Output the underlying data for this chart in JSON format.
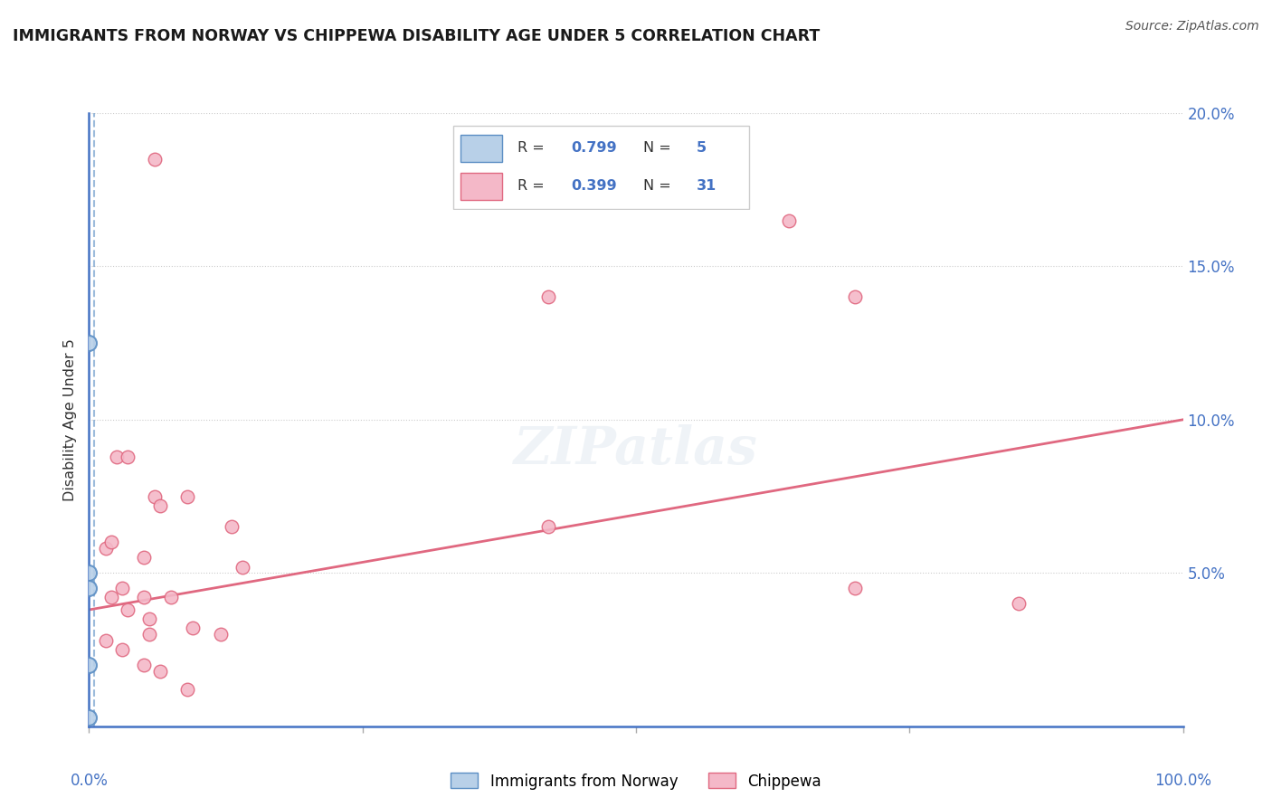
{
  "title": "IMMIGRANTS FROM NORWAY VS CHIPPEWA DISABILITY AGE UNDER 5 CORRELATION CHART",
  "source": "Source: ZipAtlas.com",
  "ylabel": "Disability Age Under 5",
  "legend_r1": "R = 0.799",
  "legend_n1": "5",
  "legend_r2": "R = 0.399",
  "legend_n2": "31",
  "legend_label1": "Immigrants from Norway",
  "legend_label2": "Chippewa",
  "blue_fill": "#b8d0e8",
  "blue_edge": "#5b8ec4",
  "pink_fill": "#f4b8c8",
  "pink_edge": "#e06880",
  "pink_line_color": "#e06880",
  "blue_dash_color": "#5b8ec4",
  "axis_color": "#4472c4",
  "title_color": "#1a1a1a",
  "source_color": "#555555",
  "grid_color": "#cccccc",
  "norway_points": [
    [
      0.0,
      12.5
    ],
    [
      0.0,
      5.0
    ],
    [
      0.0,
      4.5
    ],
    [
      0.0,
      2.0
    ],
    [
      0.0,
      0.3
    ]
  ],
  "chippewa_points": [
    [
      6.0,
      18.5
    ],
    [
      64.0,
      16.5
    ],
    [
      42.0,
      14.0
    ],
    [
      70.0,
      14.0
    ],
    [
      42.0,
      6.5
    ],
    [
      1.5,
      5.8
    ],
    [
      2.5,
      8.8
    ],
    [
      3.5,
      8.8
    ],
    [
      6.0,
      7.5
    ],
    [
      6.5,
      7.2
    ],
    [
      9.0,
      7.5
    ],
    [
      13.0,
      6.5
    ],
    [
      2.0,
      6.0
    ],
    [
      5.0,
      5.5
    ],
    [
      14.0,
      5.2
    ],
    [
      70.0,
      4.5
    ],
    [
      85.0,
      4.0
    ],
    [
      3.0,
      4.5
    ],
    [
      5.0,
      4.2
    ],
    [
      7.5,
      4.2
    ],
    [
      5.5,
      3.5
    ],
    [
      9.5,
      3.2
    ],
    [
      12.0,
      3.0
    ],
    [
      2.0,
      4.2
    ],
    [
      3.5,
      3.8
    ],
    [
      5.5,
      3.0
    ],
    [
      1.5,
      2.8
    ],
    [
      3.0,
      2.5
    ],
    [
      5.0,
      2.0
    ],
    [
      6.5,
      1.8
    ],
    [
      9.0,
      1.2
    ]
  ],
  "pink_trend_x0": 0.0,
  "pink_trend_y0": 3.8,
  "pink_trend_x1": 100.0,
  "pink_trend_y1": 10.0,
  "blue_dashed_x": 0.5,
  "xmin": 0,
  "xmax": 100,
  "ymin": 0,
  "ymax": 20,
  "x_ticks": [
    0,
    25,
    50,
    75,
    100
  ],
  "y_ticks": [
    5,
    10,
    15,
    20
  ]
}
